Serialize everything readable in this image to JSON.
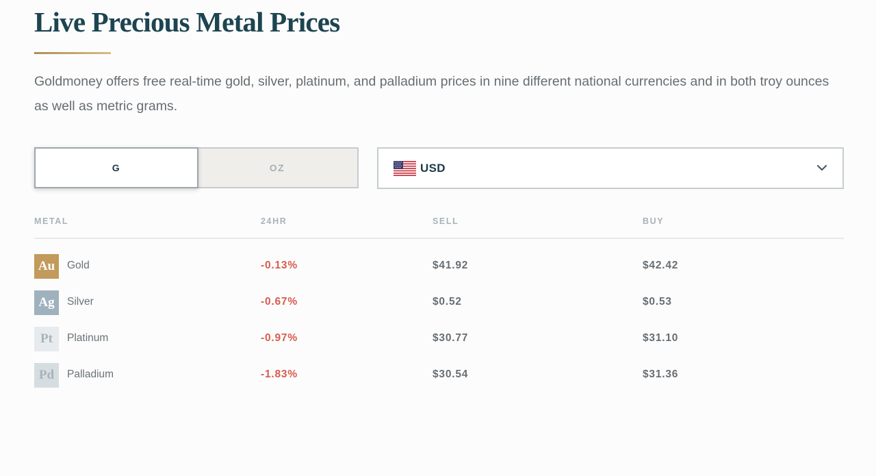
{
  "heading": {
    "title": "Live Precious Metal Prices",
    "intro": "Goldmoney offers free real-time gold, silver, platinum, and palladium prices in nine different national currencies and in both troy ounces as well as metric grams."
  },
  "controls": {
    "units": [
      {
        "label": "G",
        "selected": true
      },
      {
        "label": "OZ",
        "selected": false
      }
    ],
    "currency": {
      "code": "USD",
      "flag": "us-flag-icon"
    }
  },
  "table": {
    "headers": {
      "metal": "METAL",
      "change": "24HR",
      "sell": "SELL",
      "buy": "BUY"
    },
    "rows": [
      {
        "symbol": "Au",
        "name": "Gold",
        "change": "-0.13%",
        "sell": "$41.92",
        "buy": "$42.42",
        "color": "#c29a5b"
      },
      {
        "symbol": "Ag",
        "name": "Silver",
        "change": "-0.67%",
        "sell": "$0.52",
        "buy": "$0.53",
        "color": "#9fb1bd"
      },
      {
        "symbol": "Pt",
        "name": "Platinum",
        "change": "-0.97%",
        "sell": "$30.77",
        "buy": "$31.10",
        "color": "#e7ebed"
      },
      {
        "symbol": "Pd",
        "name": "Palladium",
        "change": "-1.83%",
        "sell": "$30.54",
        "buy": "$31.36",
        "color": "#d5dde1"
      }
    ]
  },
  "colors": {
    "title": "#1d4451",
    "accent_gold": "#b08d57",
    "negative": "#d95b4f",
    "platinum_symbol_text": "#a6b3bb",
    "palladium_symbol_text": "#a6b3bb"
  }
}
